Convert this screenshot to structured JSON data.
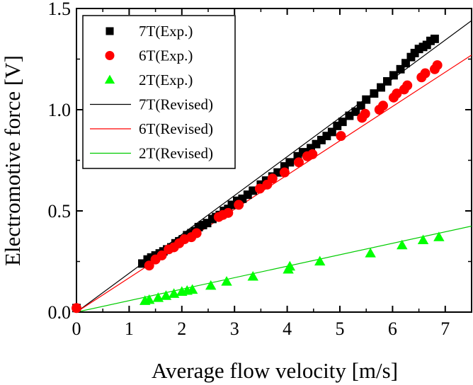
{
  "chart_data": {
    "type": "scatter",
    "xlabel": "Average flow velocity [m/s]",
    "ylabel": "Electromotive force [V]",
    "xlim": [
      0,
      7.5
    ],
    "ylim": [
      0,
      1.5
    ],
    "xticks": [
      "0",
      "1",
      "2",
      "3",
      "4",
      "5",
      "6",
      "7"
    ],
    "yticks": [
      "0.0",
      "0.5",
      "1.0",
      "1.5"
    ],
    "grid": false,
    "legend_position": "top-left",
    "series": [
      {
        "name": "7T(Exp.)",
        "kind": "scatter",
        "marker": "square",
        "color": "#000000",
        "x": [
          0,
          1.25,
          1.35,
          1.42,
          1.5,
          1.58,
          1.65,
          1.72,
          1.8,
          1.88,
          1.95,
          2.02,
          2.1,
          2.18,
          2.25,
          2.32,
          2.4,
          2.48,
          2.58,
          2.65,
          2.72,
          2.8,
          2.88,
          2.95,
          3.05,
          3.15,
          3.25,
          3.35,
          3.5,
          3.6,
          3.72,
          3.82,
          3.95,
          4.05,
          4.2,
          4.3,
          4.45,
          4.55,
          4.65,
          4.75,
          4.85,
          4.95,
          5.05,
          5.18,
          5.3,
          5.4,
          5.5,
          5.65,
          5.78,
          5.9,
          6.02,
          6.15,
          6.25,
          6.35,
          6.42,
          6.5,
          6.58,
          6.65,
          6.72,
          6.8
        ],
        "y": [
          0.02,
          0.24,
          0.26,
          0.27,
          0.28,
          0.29,
          0.3,
          0.31,
          0.32,
          0.34,
          0.35,
          0.36,
          0.38,
          0.39,
          0.4,
          0.42,
          0.43,
          0.44,
          0.46,
          0.47,
          0.48,
          0.5,
          0.51,
          0.53,
          0.55,
          0.56,
          0.58,
          0.6,
          0.63,
          0.65,
          0.67,
          0.69,
          0.72,
          0.74,
          0.77,
          0.79,
          0.81,
          0.83,
          0.85,
          0.87,
          0.89,
          0.92,
          0.94,
          0.97,
          0.99,
          1.02,
          1.05,
          1.08,
          1.11,
          1.14,
          1.17,
          1.2,
          1.23,
          1.26,
          1.28,
          1.3,
          1.31,
          1.32,
          1.34,
          1.35
        ]
      },
      {
        "name": "6T(Exp.)",
        "kind": "scatter",
        "marker": "circle",
        "color": "#ff0000",
        "x": [
          0,
          1.38,
          1.5,
          1.62,
          1.75,
          1.85,
          1.95,
          2.05,
          2.18,
          2.28,
          2.7,
          2.78,
          2.88,
          3.08,
          3.48,
          3.62,
          3.72,
          3.95,
          4.22,
          4.38,
          4.48,
          5.02,
          5.42,
          5.48,
          5.75,
          5.82,
          6.02,
          6.08,
          6.22,
          6.28,
          6.55,
          6.62,
          6.8,
          6.85
        ],
        "y": [
          0.02,
          0.23,
          0.26,
          0.28,
          0.31,
          0.32,
          0.34,
          0.36,
          0.37,
          0.39,
          0.47,
          0.48,
          0.49,
          0.53,
          0.61,
          0.63,
          0.66,
          0.69,
          0.74,
          0.77,
          0.78,
          0.87,
          0.96,
          0.98,
          1.0,
          1.02,
          1.06,
          1.08,
          1.1,
          1.12,
          1.16,
          1.18,
          1.2,
          1.22
        ]
      },
      {
        "name": "2T(Exp.)",
        "kind": "scatter",
        "marker": "triangle",
        "color": "#00ff00",
        "x": [
          1.3,
          1.38,
          1.55,
          1.7,
          1.85,
          2.0,
          2.1,
          2.2,
          2.55,
          2.85,
          3.35,
          4.02,
          4.05,
          4.62,
          5.58,
          6.18,
          6.58,
          6.88
        ],
        "y": [
          0.055,
          0.06,
          0.07,
          0.08,
          0.09,
          0.1,
          0.105,
          0.11,
          0.13,
          0.15,
          0.175,
          0.21,
          0.225,
          0.25,
          0.29,
          0.33,
          0.355,
          0.37
        ]
      },
      {
        "name": "7T(Revised)",
        "kind": "line",
        "color": "#000000",
        "x": [
          0,
          7.5
        ],
        "y": [
          0,
          1.44
        ]
      },
      {
        "name": "6T(Revised)",
        "kind": "line",
        "color": "#ff0000",
        "x": [
          0,
          7.5
        ],
        "y": [
          0,
          1.27
        ]
      },
      {
        "name": "2T(Revised)",
        "kind": "line",
        "color": "#00cc00",
        "x": [
          0,
          7.5
        ],
        "y": [
          0,
          0.425
        ]
      }
    ]
  }
}
